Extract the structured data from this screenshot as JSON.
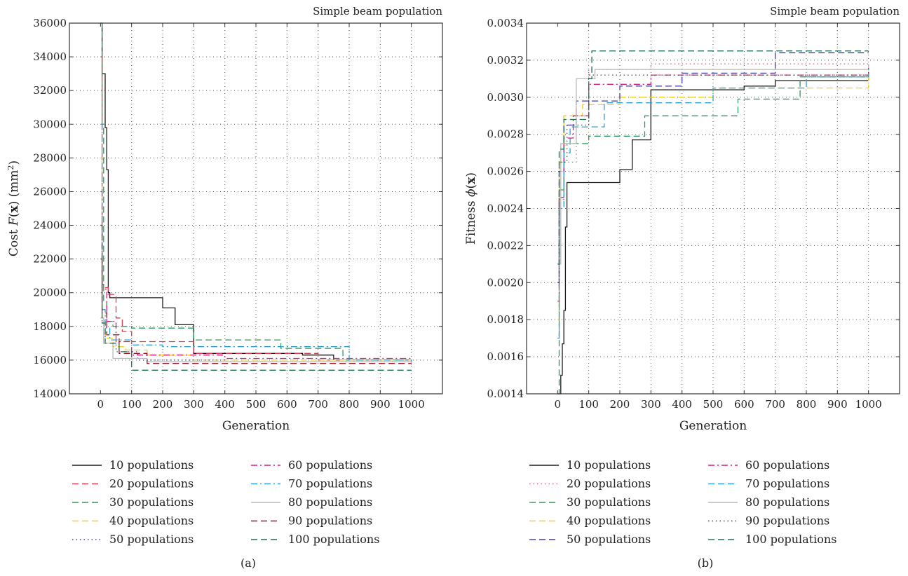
{
  "chart_data": [
    {
      "type": "line",
      "title": "Simple beam population",
      "xlabel": "Generation",
      "ylabel": "Cost F(x) (mm²)",
      "ylabel_parts": {
        "pre": "Cost ",
        "italic": "F",
        "open": "(",
        "bold": "x",
        "close": ") (mm",
        "sup": "2",
        "end": ")"
      },
      "caption": "(a)",
      "xlim": [
        -100,
        1100
      ],
      "ylim": [
        14000,
        36000
      ],
      "x_ticks": [
        0,
        100,
        200,
        300,
        400,
        500,
        600,
        700,
        800,
        900,
        1000
      ],
      "y_ticks": [
        14000,
        16000,
        18000,
        20000,
        22000,
        24000,
        26000,
        28000,
        30000,
        32000,
        34000,
        36000
      ],
      "grid": true,
      "legend_position": "below",
      "series": [
        {
          "name": "10 populations",
          "color": "#1a1a1a",
          "dash": "solid",
          "x": [
            0,
            5,
            15,
            20,
            25,
            30,
            200,
            240,
            300,
            650,
            750,
            1000
          ],
          "y": [
            36000,
            33000,
            29800,
            27300,
            20000,
            19700,
            19100,
            18100,
            16400,
            16300,
            16000,
            16000
          ]
        },
        {
          "name": "20 populations",
          "color": "#e03a4b",
          "dash": "dash",
          "x": [
            0,
            5,
            10,
            25,
            50,
            70,
            100,
            300,
            700,
            1000
          ],
          "y": [
            34000,
            20500,
            20300,
            19900,
            18500,
            17700,
            17100,
            16400,
            16000,
            15900
          ]
        },
        {
          "name": "30 populations",
          "color": "#2a9a5a",
          "dash": "dash",
          "x": [
            0,
            5,
            10,
            20,
            40,
            100,
            300,
            580,
            780,
            1000
          ],
          "y": [
            36000,
            30000,
            19500,
            18300,
            18000,
            17900,
            17200,
            16700,
            16000,
            16000
          ]
        },
        {
          "name": "40 populations",
          "color": "#f2cf1d",
          "dash": "dash",
          "x": [
            0,
            5,
            15,
            40,
            80,
            150,
            300,
            1000
          ],
          "y": [
            28000,
            18500,
            17300,
            16800,
            16600,
            16300,
            16000,
            15900
          ]
        },
        {
          "name": "50 populations",
          "color": "#3a3ab0",
          "dash": "dot",
          "x": [
            0,
            5,
            15,
            50,
            120,
            400,
            1000
          ],
          "y": [
            24000,
            18300,
            17000,
            16500,
            16000,
            15900,
            15800
          ]
        },
        {
          "name": "60 populations",
          "color": "#d81b78",
          "dash": "dashdot",
          "x": [
            0,
            5,
            20,
            50,
            100,
            400,
            1000
          ],
          "y": [
            26000,
            20200,
            18300,
            17100,
            16300,
            16100,
            15900
          ]
        },
        {
          "name": "70 populations",
          "color": "#2aa0d8",
          "dash": "dashdot",
          "x": [
            0,
            5,
            15,
            30,
            100,
            200,
            800,
            1000
          ],
          "y": [
            30000,
            19000,
            17900,
            17200,
            16900,
            16800,
            16000,
            15800
          ]
        },
        {
          "name": "80 populations",
          "color": "#b8b8b8",
          "dash": "solid",
          "x": [
            0,
            10,
            40,
            150,
            1000
          ],
          "y": [
            18500,
            17000,
            16100,
            15900,
            15700
          ]
        },
        {
          "name": "90 populations",
          "color": "#9c1a2a",
          "dash": "dash",
          "x": [
            0,
            5,
            20,
            60,
            150,
            1000
          ],
          "y": [
            22000,
            18800,
            17500,
            16400,
            15800,
            15800
          ]
        },
        {
          "name": "100 populations",
          "color": "#1f6e4a",
          "dash": "dash",
          "x": [
            0,
            5,
            15,
            60,
            100,
            1000
          ],
          "y": [
            24000,
            18200,
            17000,
            16500,
            15400,
            15400
          ]
        }
      ]
    },
    {
      "type": "line",
      "title": "Simple beam population",
      "xlabel": "Generation",
      "ylabel": "Fitness ϕ(x)",
      "ylabel_parts": {
        "pre": "Fitness ",
        "italic": "ϕ",
        "open": "(",
        "bold": "x",
        "close": ")",
        "sup": "",
        "end": ""
      },
      "caption": "(b)",
      "xlim": [
        -100,
        1100
      ],
      "ylim": [
        0.0014,
        0.0034
      ],
      "x_ticks": [
        0,
        100,
        200,
        300,
        400,
        500,
        600,
        700,
        800,
        900,
        1000
      ],
      "y_ticks": [
        "0.0014",
        "0.0016",
        "0.0018",
        "0.0020",
        "0.0022",
        "0.0024",
        "0.0026",
        "0.0028",
        "0.0030",
        "0.0032",
        "0.0034"
      ],
      "grid": true,
      "legend_position": "below",
      "series": [
        {
          "name": "10 populations",
          "color": "#1a1a1a",
          "dash": "solid",
          "x": [
            0,
            10,
            15,
            20,
            25,
            30,
            200,
            240,
            300,
            600,
            700,
            1000
          ],
          "y": [
            0.0014,
            0.0015,
            0.00167,
            0.00185,
            0.0023,
            0.00254,
            0.00261,
            0.00277,
            0.00304,
            0.00306,
            0.00309,
            0.00313
          ]
        },
        {
          "name": "20 populations",
          "color": "#e35a8a",
          "dash": "dot",
          "x": [
            0,
            5,
            20,
            60,
            100,
            300,
            1000
          ],
          "y": [
            0.002,
            0.00245,
            0.00265,
            0.0029,
            0.00315,
            0.00318,
            0.00319
          ]
        },
        {
          "name": "30 populations",
          "color": "#2a9a5a",
          "dash": "dash",
          "x": [
            0,
            5,
            20,
            100,
            280,
            580,
            780,
            1000
          ],
          "y": [
            0.0014,
            0.0025,
            0.00275,
            0.00279,
            0.0029,
            0.00299,
            0.00311,
            0.00311
          ]
        },
        {
          "name": "40 populations",
          "color": "#f2cf1d",
          "dash": "dash",
          "x": [
            0,
            5,
            20,
            80,
            200,
            500,
            1000
          ],
          "y": [
            0.0018,
            0.00265,
            0.0029,
            0.00296,
            0.003,
            0.00305,
            0.00313
          ]
        },
        {
          "name": "50 populations",
          "color": "#3a3ab0",
          "dash": "dash",
          "x": [
            0,
            5,
            20,
            60,
            200,
            400,
            700,
            1000
          ],
          "y": [
            0.002,
            0.0026,
            0.00285,
            0.00298,
            0.00306,
            0.00313,
            0.00324,
            0.00324
          ]
        },
        {
          "name": "60 populations",
          "color": "#d81b78",
          "dash": "dashdot",
          "x": [
            0,
            5,
            20,
            50,
            100,
            300,
            1000
          ],
          "y": [
            0.0019,
            0.00246,
            0.00278,
            0.0029,
            0.00307,
            0.00312,
            0.00317
          ]
        },
        {
          "name": "70 populations",
          "color": "#2aa0d8",
          "dash": "dash",
          "x": [
            0,
            5,
            20,
            40,
            150,
            500,
            800,
            1000
          ],
          "y": [
            0.0017,
            0.0024,
            0.0027,
            0.00284,
            0.00297,
            0.00305,
            0.00311,
            0.00315
          ]
        },
        {
          "name": "80 populations",
          "color": "#b8b8b8",
          "dash": "solid",
          "x": [
            0,
            10,
            60,
            120,
            1000
          ],
          "y": [
            0.0021,
            0.00275,
            0.0031,
            0.00315,
            0.00318
          ]
        },
        {
          "name": "90 populations",
          "color": "#444444",
          "dash": "dot",
          "x": [
            0,
            5,
            30,
            100,
            1000
          ],
          "y": [
            0.002,
            0.00265,
            0.00285,
            0.00312,
            0.00316
          ]
        },
        {
          "name": "100 populations",
          "color": "#1f6e4a",
          "dash": "dash",
          "x": [
            0,
            5,
            20,
            100,
            110,
            1000
          ],
          "y": [
            0.0021,
            0.00272,
            0.00288,
            0.0031,
            0.00325,
            0.00325
          ]
        }
      ]
    }
  ]
}
